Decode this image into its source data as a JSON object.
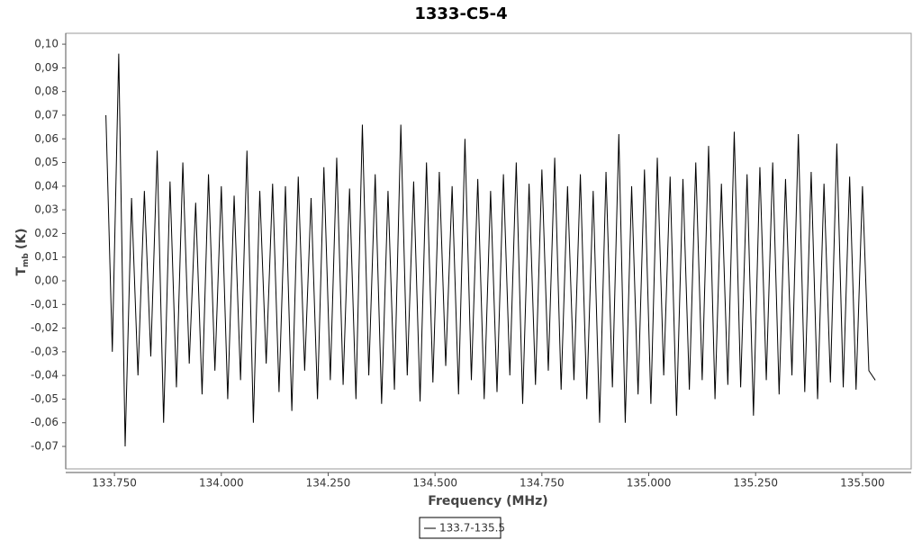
{
  "chart_data": {
    "type": "line",
    "title": "1333-C5-4",
    "x_label": "Frequency (MHz)",
    "y_label": {
      "main": "T",
      "sub": "mb",
      "unit": "(K)"
    },
    "xlim": [
      133.636,
      135.614
    ],
    "ylim": [
      -0.0795,
      0.1046
    ],
    "grid": false,
    "legend": "bottom",
    "xticks": [
      {
        "value": 133.75,
        "label": "133.750"
      },
      {
        "value": 134.0,
        "label": "134.000"
      },
      {
        "value": 134.25,
        "label": "134.250"
      },
      {
        "value": 134.5,
        "label": "134.500"
      },
      {
        "value": 134.75,
        "label": "134.750"
      },
      {
        "value": 135.0,
        "label": "135.000"
      },
      {
        "value": 135.25,
        "label": "135.250"
      },
      {
        "value": 135.5,
        "label": "135.500"
      }
    ],
    "yticks": [
      {
        "value": 0.1,
        "label": "0,10"
      },
      {
        "value": 0.09,
        "label": "0,09"
      },
      {
        "value": 0.08,
        "label": "0,08"
      },
      {
        "value": 0.07,
        "label": "0,07"
      },
      {
        "value": 0.06,
        "label": "0,06"
      },
      {
        "value": 0.05,
        "label": "0,05"
      },
      {
        "value": 0.04,
        "label": "0,04"
      },
      {
        "value": 0.03,
        "label": "0,03"
      },
      {
        "value": 0.02,
        "label": "0,02"
      },
      {
        "value": 0.01,
        "label": "0,01"
      },
      {
        "value": 0,
        "label": "0,00"
      },
      {
        "value": -0.01,
        "label": "-0,01"
      },
      {
        "value": -0.02,
        "label": "-0,02"
      },
      {
        "value": -0.03,
        "label": "-0,03"
      },
      {
        "value": -0.04,
        "label": "-0,04"
      },
      {
        "value": -0.05,
        "label": "-0,05"
      },
      {
        "value": -0.06,
        "label": "-0,06"
      },
      {
        "value": -0.07,
        "label": "-0,07"
      }
    ],
    "x": [
      133.73,
      133.745,
      133.76,
      133.775,
      133.79,
      133.805,
      133.82,
      133.835,
      133.85,
      133.865,
      133.88,
      133.895,
      133.91,
      133.925,
      133.94,
      133.955,
      133.97,
      133.985,
      134.0,
      134.015,
      134.03,
      134.045,
      134.06,
      134.075,
      134.09,
      134.105,
      134.12,
      134.135,
      134.15,
      134.165,
      134.18,
      134.195,
      134.21,
      134.225,
      134.24,
      134.255,
      134.27,
      134.285,
      134.3,
      134.315,
      134.33,
      134.345,
      134.36,
      134.375,
      134.39,
      134.405,
      134.42,
      134.435,
      134.45,
      134.465,
      134.48,
      134.495,
      134.51,
      134.525,
      134.54,
      134.555,
      134.57,
      134.585,
      134.6,
      134.615,
      134.63,
      134.645,
      134.66,
      134.675,
      134.69,
      134.705,
      134.72,
      134.735,
      134.75,
      134.765,
      134.78,
      134.795,
      134.81,
      134.825,
      134.84,
      134.855,
      134.87,
      134.885,
      134.9,
      134.915,
      134.93,
      134.945,
      134.96,
      134.975,
      134.99,
      135.005,
      135.02,
      135.035,
      135.05,
      135.065,
      135.08,
      135.095,
      135.11,
      135.125,
      135.14,
      135.155,
      135.17,
      135.185,
      135.2,
      135.215,
      135.23,
      135.245,
      135.26,
      135.275,
      135.29,
      135.305,
      135.32,
      135.335,
      135.35,
      135.365,
      135.38,
      135.395,
      135.41,
      135.425,
      135.44,
      135.455,
      135.47,
      135.485,
      135.5,
      135.515,
      135.53
    ],
    "series": [
      {
        "name": "133.7-135.5",
        "color": "#000000",
        "values": [
          0.07,
          -0.03,
          0.096,
          -0.07,
          0.035,
          -0.04,
          0.038,
          -0.032,
          0.055,
          -0.06,
          0.042,
          -0.045,
          0.05,
          -0.035,
          0.033,
          -0.048,
          0.045,
          -0.038,
          0.04,
          -0.05,
          0.036,
          -0.042,
          0.055,
          -0.06,
          0.038,
          -0.035,
          0.041,
          -0.047,
          0.04,
          -0.055,
          0.044,
          -0.038,
          0.035,
          -0.05,
          0.048,
          -0.042,
          0.052,
          -0.044,
          0.039,
          -0.05,
          0.066,
          -0.04,
          0.045,
          -0.052,
          0.038,
          -0.046,
          0.066,
          -0.04,
          0.042,
          -0.051,
          0.05,
          -0.043,
          0.046,
          -0.036,
          0.04,
          -0.048,
          0.06,
          -0.042,
          0.043,
          -0.05,
          0.038,
          -0.047,
          0.045,
          -0.04,
          0.05,
          -0.052,
          0.041,
          -0.044,
          0.047,
          -0.038,
          0.052,
          -0.046,
          0.04,
          -0.042,
          0.045,
          -0.05,
          0.038,
          -0.06,
          0.046,
          -0.045,
          0.062,
          -0.06,
          0.04,
          -0.048,
          0.047,
          -0.052,
          0.052,
          -0.04,
          0.044,
          -0.057,
          0.043,
          -0.046,
          0.05,
          -0.042,
          0.057,
          -0.05,
          0.041,
          -0.044,
          0.063,
          -0.045,
          0.045,
          -0.057,
          0.048,
          -0.042,
          0.05,
          -0.048,
          0.043,
          -0.04,
          0.062,
          -0.047,
          0.046,
          -0.05,
          0.041,
          -0.043,
          0.058,
          -0.045,
          0.044,
          -0.046,
          0.04,
          -0.038,
          -0.042
        ]
      }
    ]
  }
}
